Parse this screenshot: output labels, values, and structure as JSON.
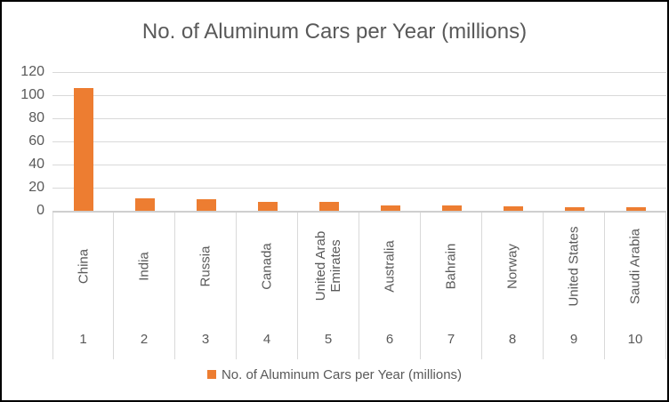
{
  "chart_data": {
    "type": "bar",
    "title": "No. of Aluminum Cars per Year (millions)",
    "categories": [
      "China",
      "India",
      "Russia",
      "Canada",
      "United Arab Emirates",
      "Australia",
      "Bahrain",
      "Norway",
      "United States",
      "Saudi Arabia"
    ],
    "category_ranks": [
      "1",
      "2",
      "3",
      "4",
      "5",
      "6",
      "7",
      "8",
      "9",
      "10"
    ],
    "values": [
      106,
      11,
      10,
      8,
      8,
      4.5,
      4.5,
      3.5,
      3,
      3
    ],
    "xlabel": "",
    "ylabel": "",
    "yticks": [
      0,
      20,
      40,
      60,
      80,
      100,
      120
    ],
    "ylim": [
      0,
      120
    ],
    "grid": true,
    "legend": [
      "No. of Aluminum Cars per Year (millions)"
    ],
    "legend_position": "bottom",
    "bar_color": "#ED7D31",
    "gridline_color": "#D9D9D9",
    "text_color": "#595959"
  }
}
